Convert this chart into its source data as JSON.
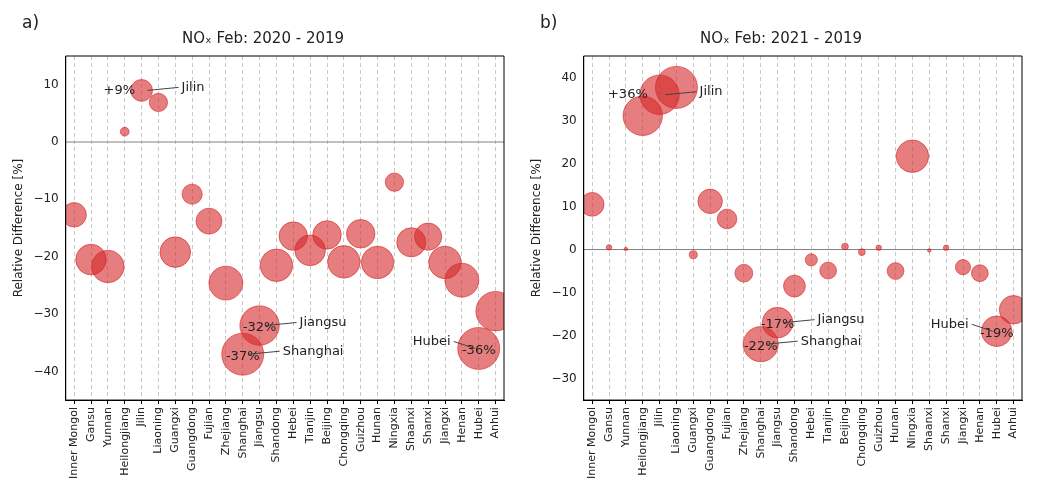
{
  "chart_data": [
    {
      "type": "bubble",
      "title": "NOₓ Feb: 2020 - 2019",
      "ylabel": "Relative Difference [%]",
      "annotations": [
        "a)",
        {
          "text": "Jilin",
          "x": "Jilin",
          "y": 9
        },
        {
          "text": "Jiangsu",
          "x": "Jiangsu",
          "y": -32
        },
        {
          "text": "Shanghai",
          "x": "Shanghai",
          "y": -37
        },
        {
          "text": "Hubei",
          "x": "Hubei",
          "y": -36
        }
      ],
      "categories": [
        "Inner Mongol",
        "Gansu",
        "Yunnan",
        "Heilongjiang",
        "Jilin",
        "Liaoning",
        "Guangxi",
        "Guangdong",
        "Fujian",
        "Zhejiang",
        "Shanghai",
        "Jiangsu",
        "Shandong",
        "Hebei",
        "Tianjin",
        "Beijing",
        "Chongqing",
        "Guizhou",
        "Hunan",
        "Ningxia",
        "Shaanxi",
        "Shanxi",
        "Jiangxi",
        "Henan",
        "Hubei",
        "Anhui"
      ],
      "series": [
        {
          "color": "#d62728",
          "values": [
            -12.7,
            -20.5,
            -21.7,
            1.8,
            9,
            6.9,
            -19.2,
            -9.1,
            -13.8,
            -24.6,
            -37,
            -32,
            -21.5,
            -16.4,
            -18.9,
            -16.2,
            -20.9,
            -16,
            -21,
            -7,
            -17.5,
            -16.5,
            -21,
            -24.1,
            -36,
            -29.5
          ],
          "sizes": [
            0.34,
            0.53,
            0.6,
            0.044,
            0.27,
            0.19,
            0.53,
            0.23,
            0.38,
            0.65,
            1,
            0.88,
            0.6,
            0.46,
            0.53,
            0.46,
            0.6,
            0.46,
            0.6,
            0.19,
            0.48,
            0.42,
            0.6,
            0.65,
            1,
            0.88
          ],
          "value_labels": [
            null,
            null,
            null,
            null,
            "+9%",
            null,
            null,
            null,
            null,
            null,
            "-37%",
            "-32%",
            null,
            null,
            null,
            null,
            null,
            null,
            null,
            null,
            null,
            null,
            null,
            null,
            "-36%",
            null
          ]
        }
      ],
      "ylim": [
        -45,
        15
      ],
      "yticks": [
        -40,
        -30,
        -20,
        -10,
        0,
        10
      ],
      "grid": "x",
      "legend": false,
      "ref_lines": [
        {
          "axis": "y",
          "value": 0,
          "color": "#808080"
        }
      ]
    },
    {
      "type": "bubble",
      "title": "NOₓ Feb: 2021 - 2019",
      "ylabel": "Relative Difference [%]",
      "annotations": [
        "b)",
        {
          "text": "Jilin",
          "x": "Jilin",
          "y": 36
        },
        {
          "text": "Jiangsu",
          "x": "Jiangsu",
          "y": -17
        },
        {
          "text": "Shanghai",
          "x": "Shanghai",
          "y": -22
        },
        {
          "text": "Hubei",
          "x": "Hubei",
          "y": -19
        }
      ],
      "categories": [
        "Inner Mongol",
        "Gansu",
        "Yunnan",
        "Heilongjiang",
        "Jilin",
        "Liaoning",
        "Guangxi",
        "Guangdong",
        "Fujian",
        "Zhejiang",
        "Shanghai",
        "Jiangsu",
        "Shandong",
        "Hebei",
        "Tianjin",
        "Beijing",
        "Chongqing",
        "Guizhou",
        "Hunan",
        "Ningxia",
        "Shaanxi",
        "Shanxi",
        "Jiangxi",
        "Henan",
        "Hubei",
        "Anhui"
      ],
      "series": [
        {
          "color": "#d62728",
          "values": [
            10.5,
            0.5,
            0.1,
            31.1,
            36,
            37.7,
            -1.2,
            11.2,
            7.1,
            -5.5,
            -22,
            -17,
            -8.5,
            -2.4,
            -4.9,
            0.7,
            -0.6,
            0.4,
            -5,
            21.7,
            -0.2,
            0.4,
            -4.1,
            -5.5,
            -19,
            -14
          ],
          "sizes": [
            0.32,
            0.017,
            0.007,
            0.88,
            0.88,
            1,
            0.037,
            0.34,
            0.22,
            0.18,
            0.7,
            0.53,
            0.27,
            0.084,
            0.16,
            0.026,
            0.026,
            0.017,
            0.16,
            0.6,
            0.007,
            0.017,
            0.13,
            0.16,
            0.53,
            0.46
          ],
          "value_labels": [
            null,
            null,
            null,
            null,
            "+36%",
            null,
            null,
            null,
            null,
            null,
            "-22%",
            "-17%",
            null,
            null,
            null,
            null,
            null,
            null,
            null,
            null,
            null,
            null,
            null,
            null,
            "-19%",
            null
          ]
        }
      ],
      "ylim": [
        -35,
        45
      ],
      "yticks": [
        -30,
        -20,
        -10,
        0,
        10,
        20,
        30,
        40
      ],
      "grid": "x",
      "legend": false,
      "ref_lines": [
        {
          "axis": "y",
          "value": 0,
          "color": "#808080"
        }
      ]
    }
  ]
}
